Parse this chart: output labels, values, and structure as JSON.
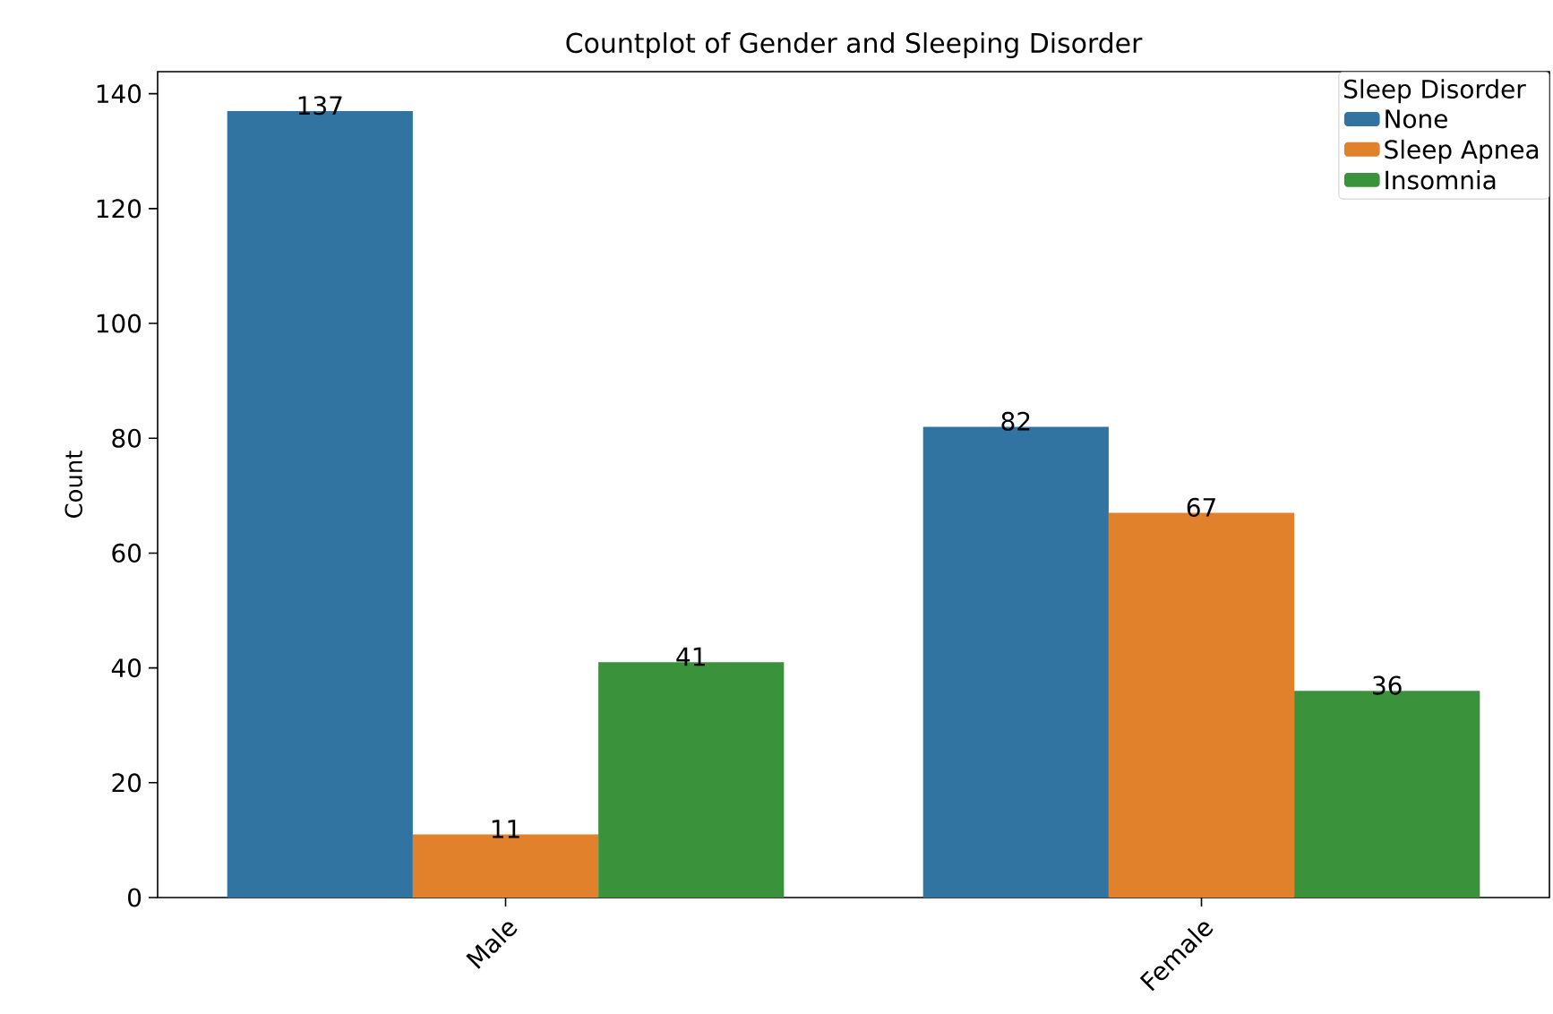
{
  "chart_data": {
    "type": "bar",
    "title": "Countplot of Gender and Sleeping Disorder",
    "ylabel": "Count",
    "legend_title": "Sleep Disorder",
    "categories": [
      "Male",
      "Female"
    ],
    "series": [
      {
        "name": "None",
        "color": "#3274a1",
        "values": [
          137,
          82
        ]
      },
      {
        "name": "Sleep Apnea",
        "color": "#e1812c",
        "values": [
          11,
          67
        ]
      },
      {
        "name": "Insomnia",
        "color": "#3a923a",
        "values": [
          41,
          36
        ]
      }
    ],
    "ylim": [
      0,
      143.85
    ],
    "yticks": [
      0,
      20,
      40,
      60,
      80,
      100,
      120,
      140
    ],
    "data_labels": true,
    "legend": "top right",
    "grid": false
  }
}
